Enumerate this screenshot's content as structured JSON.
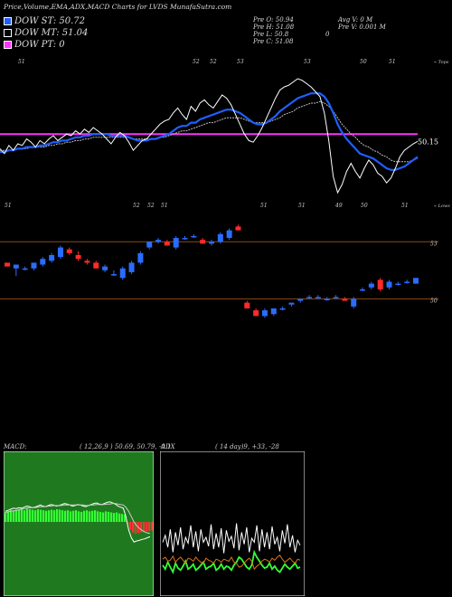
{
  "header": {
    "title": "Price,Volume,EMA,ADX,MACD Charts for LVDS MunafaSutra.com"
  },
  "legend": [
    {
      "label": "DOW ST: 50.72",
      "color": "#1f5fff"
    },
    {
      "label": "DOW MT: 51.04",
      "color": "#000000"
    },
    {
      "label": "DOW PT: 0",
      "color": "#ff33ff"
    }
  ],
  "stats": {
    "open": "Pre   O: 50.94",
    "high": "Pre   H: 51.08",
    "low": "Pre   L: 50.8",
    "close": "Pre   C: 51.08",
    "avg_volume": "Avg V: 0   M",
    "volume": "Pre   V: 0.001 M",
    "extra": "0"
  },
  "chart_data": [
    {
      "type": "line",
      "name": "ema-panel",
      "top_labels": [
        "51",
        "52",
        "52",
        "53",
        "53",
        "50",
        "51"
      ],
      "bottom_labels": [
        "51",
        "52",
        "52",
        "51",
        "51",
        "51",
        "49",
        "50",
        "51"
      ],
      "top_right_label": "« Tops",
      "bottom_right_label": "« Lows",
      "last_value_label": "50.15",
      "price": [
        49.7,
        49.4,
        49.9,
        49.6,
        50.0,
        49.9,
        50.3,
        50.1,
        49.8,
        50.2,
        50.0,
        50.3,
        50.5,
        50.2,
        50.4,
        50.6,
        50.5,
        50.8,
        50.6,
        50.9,
        50.7,
        51.0,
        50.8,
        50.6,
        50.3,
        50.0,
        50.4,
        50.7,
        50.5,
        50.1,
        49.6,
        49.9,
        50.2,
        50.3,
        50.6,
        50.9,
        51.2,
        51.4,
        51.5,
        51.9,
        52.2,
        51.8,
        51.5,
        52.3,
        52.0,
        52.5,
        52.7,
        52.4,
        52.2,
        52.6,
        53.0,
        52.8,
        52.4,
        51.8,
        51.2,
        50.6,
        50.2,
        50.1,
        50.5,
        51.0,
        51.6,
        52.2,
        52.8,
        53.3,
        53.5,
        53.6,
        53.8,
        54.0,
        53.9,
        53.7,
        53.5,
        53.2,
        52.9,
        51.9,
        50.2,
        48.0,
        47.0,
        47.5,
        48.3,
        48.8,
        48.3,
        47.9,
        48.5,
        49.0,
        48.7,
        48.2,
        48.0,
        47.6,
        47.9,
        48.5,
        49.2,
        49.6,
        49.8,
        50.0,
        50.15
      ],
      "ema_short": [
        49.5,
        49.5,
        49.6,
        49.6,
        49.7,
        49.7,
        49.8,
        49.8,
        49.8,
        49.9,
        49.9,
        50.0,
        50.1,
        50.1,
        50.2,
        50.2,
        50.3,
        50.4,
        50.4,
        50.5,
        50.5,
        50.6,
        50.6,
        50.6,
        50.6,
        50.5,
        50.5,
        50.5,
        50.5,
        50.4,
        50.3,
        50.2,
        50.2,
        50.2,
        50.3,
        50.3,
        50.4,
        50.5,
        50.6,
        50.8,
        51.0,
        51.1,
        51.1,
        51.3,
        51.3,
        51.5,
        51.6,
        51.7,
        51.8,
        51.9,
        52.0,
        52.1,
        52.1,
        52.0,
        51.9,
        51.7,
        51.5,
        51.3,
        51.2,
        51.2,
        51.3,
        51.5,
        51.7,
        52.0,
        52.2,
        52.4,
        52.6,
        52.8,
        52.9,
        53.0,
        53.1,
        53.1,
        53.1,
        52.9,
        52.5,
        51.9,
        51.2,
        50.7,
        50.3,
        50.0,
        49.7,
        49.4,
        49.3,
        49.2,
        49.1,
        48.9,
        48.7,
        48.5,
        48.4,
        48.4,
        48.5,
        48.6,
        48.8,
        49.0,
        49.2
      ],
      "ema_medium": [
        49.6,
        49.6,
        49.6,
        49.6,
        49.7,
        49.7,
        49.7,
        49.8,
        49.8,
        49.8,
        49.8,
        49.9,
        49.9,
        50.0,
        50.0,
        50.1,
        50.1,
        50.2,
        50.2,
        50.3,
        50.3,
        50.4,
        50.4,
        50.4,
        50.4,
        50.4,
        50.4,
        50.4,
        50.4,
        50.4,
        50.3,
        50.3,
        50.3,
        50.3,
        50.3,
        50.3,
        50.4,
        50.4,
        50.5,
        50.6,
        50.7,
        50.8,
        50.8,
        50.9,
        51.0,
        51.1,
        51.2,
        51.3,
        51.3,
        51.4,
        51.5,
        51.6,
        51.6,
        51.6,
        51.6,
        51.5,
        51.4,
        51.3,
        51.3,
        51.3,
        51.3,
        51.4,
        51.5,
        51.6,
        51.8,
        51.9,
        52.0,
        52.2,
        52.3,
        52.4,
        52.5,
        52.5,
        52.6,
        52.5,
        52.3,
        52.0,
        51.6,
        51.2,
        50.9,
        50.6,
        50.4,
        50.1,
        49.9,
        49.8,
        49.6,
        49.5,
        49.3,
        49.2,
        49.0,
        48.9,
        48.9,
        48.9,
        48.9,
        49.0,
        49.1
      ],
      "pt_line": 50.6,
      "ylim": [
        46.5,
        54.5
      ]
    },
    {
      "type": "candlestick",
      "name": "price-panel",
      "level_labels": [
        "53",
        "50"
      ],
      "levels": [
        53,
        50
      ],
      "candles": [
        {
          "o": 51.9,
          "h": 51.9,
          "l": 51.7,
          "c": 51.7
        },
        {
          "o": 51.6,
          "h": 51.8,
          "l": 51.2,
          "c": 51.8
        },
        {
          "o": 51.6,
          "h": 51.7,
          "l": 51.5,
          "c": 51.6
        },
        {
          "o": 51.6,
          "h": 51.9,
          "l": 51.5,
          "c": 51.9
        },
        {
          "o": 51.8,
          "h": 52.2,
          "l": 51.7,
          "c": 52.1
        },
        {
          "o": 52.0,
          "h": 52.4,
          "l": 51.9,
          "c": 52.3
        },
        {
          "o": 52.2,
          "h": 52.8,
          "l": 52.1,
          "c": 52.7
        },
        {
          "o": 52.6,
          "h": 52.7,
          "l": 52.3,
          "c": 52.4
        },
        {
          "o": 52.3,
          "h": 52.5,
          "l": 52.0,
          "c": 52.1
        },
        {
          "o": 52.0,
          "h": 52.1,
          "l": 51.8,
          "c": 51.9
        },
        {
          "o": 51.9,
          "h": 52.0,
          "l": 51.6,
          "c": 51.6
        },
        {
          "o": 51.5,
          "h": 51.8,
          "l": 51.4,
          "c": 51.7
        },
        {
          "o": 51.3,
          "h": 51.5,
          "l": 51.2,
          "c": 51.3
        },
        {
          "o": 51.1,
          "h": 51.7,
          "l": 51.0,
          "c": 51.6
        },
        {
          "o": 51.4,
          "h": 52.0,
          "l": 51.3,
          "c": 51.9
        },
        {
          "o": 51.9,
          "h": 52.5,
          "l": 51.8,
          "c": 52.4
        },
        {
          "o": 52.7,
          "h": 53.0,
          "l": 52.6,
          "c": 53.0
        },
        {
          "o": 53.0,
          "h": 53.2,
          "l": 52.9,
          "c": 53.1
        },
        {
          "o": 53.0,
          "h": 53.1,
          "l": 52.8,
          "c": 52.8
        },
        {
          "o": 52.7,
          "h": 53.3,
          "l": 52.6,
          "c": 53.2
        },
        {
          "o": 53.2,
          "h": 53.3,
          "l": 53.1,
          "c": 53.2
        },
        {
          "o": 53.3,
          "h": 53.4,
          "l": 53.2,
          "c": 53.3
        },
        {
          "o": 53.1,
          "h": 53.2,
          "l": 52.9,
          "c": 52.9
        },
        {
          "o": 52.9,
          "h": 53.1,
          "l": 52.8,
          "c": 53.0
        },
        {
          "o": 53.0,
          "h": 53.5,
          "l": 52.9,
          "c": 53.4
        },
        {
          "o": 53.2,
          "h": 53.7,
          "l": 53.1,
          "c": 53.6
        },
        {
          "o": 53.8,
          "h": 53.9,
          "l": 53.6,
          "c": 53.6
        },
        {
          "o": 49.8,
          "h": 49.9,
          "l": 49.5,
          "c": 49.5
        },
        {
          "o": 49.4,
          "h": 49.5,
          "l": 49.1,
          "c": 49.1
        },
        {
          "o": 49.1,
          "h": 49.5,
          "l": 49.0,
          "c": 49.4
        },
        {
          "o": 49.2,
          "h": 49.5,
          "l": 49.1,
          "c": 49.5
        },
        {
          "o": 49.5,
          "h": 49.6,
          "l": 49.4,
          "c": 49.5
        },
        {
          "o": 49.7,
          "h": 49.8,
          "l": 49.6,
          "c": 49.8
        },
        {
          "o": 49.9,
          "h": 50.0,
          "l": 49.8,
          "c": 50.0
        },
        {
          "o": 50.1,
          "h": 50.2,
          "l": 50.0,
          "c": 50.1
        },
        {
          "o": 50.1,
          "h": 50.2,
          "l": 50.0,
          "c": 50.1
        },
        {
          "o": 50.0,
          "h": 50.1,
          "l": 49.9,
          "c": 50.0
        },
        {
          "o": 50.1,
          "h": 50.2,
          "l": 50.0,
          "c": 50.1
        },
        {
          "o": 50.0,
          "h": 50.1,
          "l": 49.9,
          "c": 49.9
        },
        {
          "o": 49.6,
          "h": 50.1,
          "l": 49.5,
          "c": 50.0
        },
        {
          "o": 50.5,
          "h": 50.6,
          "l": 50.4,
          "c": 50.5
        },
        {
          "o": 50.6,
          "h": 50.9,
          "l": 50.5,
          "c": 50.8
        },
        {
          "o": 51.0,
          "h": 51.1,
          "l": 50.4,
          "c": 50.5
        },
        {
          "o": 50.6,
          "h": 51.0,
          "l": 50.5,
          "c": 50.9
        },
        {
          "o": 50.8,
          "h": 50.9,
          "l": 50.7,
          "c": 50.8
        },
        {
          "o": 50.9,
          "h": 51.0,
          "l": 50.8,
          "c": 50.9
        },
        {
          "o": 50.8,
          "h": 51.1,
          "l": 50.8,
          "c": 51.1
        }
      ],
      "ylim": [
        48.5,
        54.2
      ]
    },
    {
      "type": "area",
      "name": "macd-panel",
      "title": "MACD:",
      "params": "( 12,26,9 ) 50.69,  50.79,  -0.1",
      "histogram": [
        0.18,
        0.2,
        0.22,
        0.21,
        0.22,
        0.24,
        0.23,
        0.22,
        0.25,
        0.24,
        0.23,
        0.22,
        0.24,
        0.23,
        0.22,
        0.21,
        0.22,
        0.23,
        0.22,
        0.24,
        0.23,
        0.22,
        0.21,
        0.22,
        0.2,
        0.21,
        0.22,
        0.2,
        0.19,
        0.21,
        0.22,
        0.2,
        0.21,
        0.22,
        0.2,
        0.19,
        0.18,
        0.2,
        0.19,
        0.18,
        0.17,
        0.18,
        0.16,
        0.15,
        0.14,
        -0.05,
        -0.15,
        -0.2,
        -0.22,
        -0.21,
        -0.2,
        -0.19,
        -0.18,
        -0.17,
        -0.16
      ],
      "macd": [
        0.2,
        0.22,
        0.24,
        0.26,
        0.25,
        0.27,
        0.26,
        0.28,
        0.3,
        0.29,
        0.27,
        0.28,
        0.3,
        0.32,
        0.3,
        0.29,
        0.31,
        0.33,
        0.32,
        0.3,
        0.31,
        0.33,
        0.35,
        0.34,
        0.32,
        0.3,
        0.31,
        0.33,
        0.32,
        0.3,
        0.29,
        0.31,
        0.33,
        0.35,
        0.36,
        0.34,
        0.33,
        0.35,
        0.37,
        0.38,
        0.36,
        0.34,
        0.3,
        0.28,
        0.26,
        0.1,
        -0.15,
        -0.3,
        -0.38,
        -0.36,
        -0.35,
        -0.33,
        -0.32,
        -0.3,
        -0.28
      ],
      "signal": [
        0.18,
        0.19,
        0.2,
        0.21,
        0.22,
        0.23,
        0.24,
        0.25,
        0.26,
        0.27,
        0.27,
        0.27,
        0.28,
        0.29,
        0.29,
        0.29,
        0.3,
        0.3,
        0.31,
        0.31,
        0.31,
        0.31,
        0.32,
        0.32,
        0.32,
        0.32,
        0.32,
        0.32,
        0.32,
        0.32,
        0.31,
        0.31,
        0.32,
        0.32,
        0.33,
        0.33,
        0.33,
        0.33,
        0.34,
        0.34,
        0.35,
        0.35,
        0.34,
        0.33,
        0.32,
        0.28,
        0.2,
        0.1,
        0.0,
        -0.07,
        -0.12,
        -0.16,
        -0.19,
        -0.21,
        -0.22
      ],
      "ylim": [
        -1.2,
        1.2
      ]
    },
    {
      "type": "line",
      "name": "adx-panel",
      "title": "ADX",
      "params": "( 14  day)9,  +33,  -28",
      "adx": [
        45,
        52,
        40,
        58,
        35,
        55,
        42,
        60,
        38,
        50,
        44,
        62,
        40,
        56,
        36,
        58,
        45,
        50,
        41,
        63,
        38,
        54,
        40,
        59,
        34,
        57,
        46,
        51,
        39,
        64,
        37,
        55,
        43,
        60,
        35,
        49,
        45,
        62,
        36,
        58,
        40,
        55,
        38,
        61,
        43,
        50,
        36,
        57,
        44,
        63,
        40,
        52,
        35,
        47,
        42
      ],
      "plus_di": [
        22,
        18,
        25,
        20,
        15,
        24,
        19,
        17,
        21,
        26,
        18,
        20,
        23,
        17,
        19,
        22,
        25,
        18,
        20,
        21,
        24,
        17,
        19,
        23,
        18,
        21,
        20,
        17,
        22,
        25,
        30,
        28,
        24,
        20,
        18,
        22,
        35,
        30,
        26,
        22,
        19,
        20,
        24,
        18,
        21,
        17,
        15,
        19,
        23,
        20,
        18,
        21,
        24,
        19,
        20
      ],
      "minus_di": [
        28,
        30,
        26,
        27,
        31,
        25,
        28,
        30,
        27,
        24,
        29,
        28,
        26,
        30,
        27,
        25,
        24,
        29,
        27,
        26,
        24,
        28,
        27,
        25,
        28,
        27,
        26,
        30,
        25,
        24,
        20,
        21,
        24,
        27,
        29,
        26,
        18,
        21,
        23,
        26,
        28,
        27,
        25,
        29,
        27,
        30,
        32,
        28,
        25,
        27,
        29,
        26,
        24,
        28,
        27
      ],
      "ylim": [
        0,
        100
      ]
    }
  ]
}
